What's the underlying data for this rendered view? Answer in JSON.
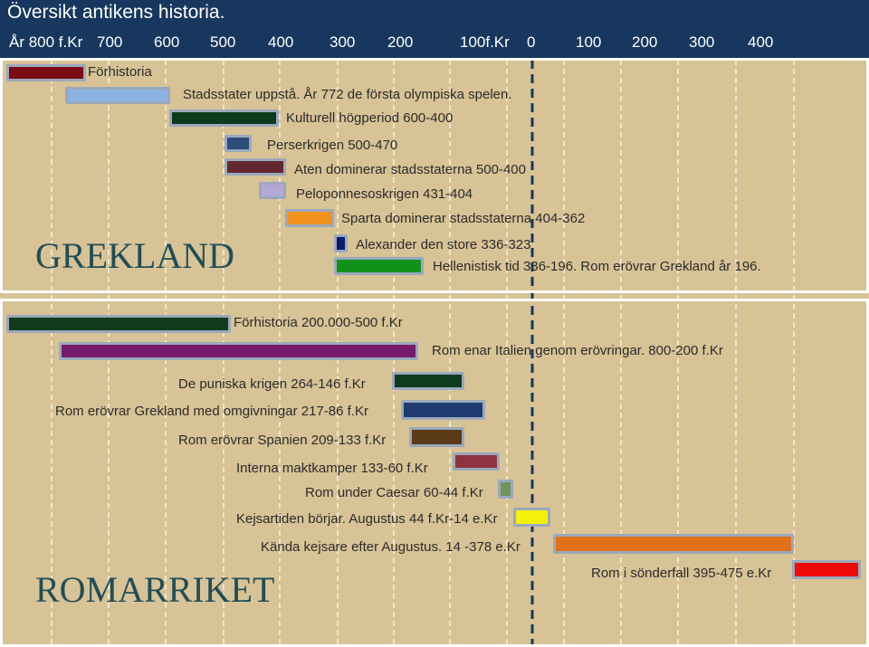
{
  "title": "Översikt antikens historia.",
  "axis_ticks": [
    "År  800 f.Kr",
    "700",
    "600",
    "500",
    "400",
    "300",
    "200",
    "100f.Kr",
    "0",
    "100",
    "200",
    "300",
    "400"
  ],
  "greece": {
    "heading": "GREKLAND",
    "items": [
      {
        "label": "Förhistoria",
        "color": "#7b0c14"
      },
      {
        "label": "Stadsstater uppstå.  År 772 de första olympiska spelen.",
        "color": "#8db3e2"
      },
      {
        "label": "Kulturell högperiod 600-400",
        "color": "#0e3b1e"
      },
      {
        "label": "Perserkrigen  500-470",
        "color": "#2c4d7a"
      },
      {
        "label": "Aten dominerar stadsstaterna 500-400",
        "color": "#63282f"
      },
      {
        "label": "Peloponnesoskrigen  431-404",
        "color": "#b3a8d6"
      },
      {
        "label": "Sparta dominerar stadsstaterna 404-362",
        "color": "#f0921e"
      },
      {
        "label": "Alexander den store 336-323",
        "color": "#0a1a6e"
      },
      {
        "label": "Hellenistisk tid 336-196. Rom erövrar Grekland  år 196.",
        "color": "#12921a"
      }
    ]
  },
  "rome": {
    "heading": "ROMARRIKET",
    "items": [
      {
        "label": "Förhistoria 200.000-500 f.Kr",
        "color": "#123a1c"
      },
      {
        "label": "Rom enar Italien genom erövringar. 800-200 f.Kr",
        "color": "#761b6e"
      },
      {
        "label": "De puniska krigen 264-146 f.Kr",
        "color": "#0e3b1e"
      },
      {
        "label": "Rom erövrar Grekland med omgivningar 217-86 f.Kr",
        "color": "#1f3b70"
      },
      {
        "label": "Rom erövrar Spanien 209-133 f.Kr",
        "color": "#5b3a18"
      },
      {
        "label": "Interna maktkamper 133-60 f.Kr",
        "color": "#8d3440"
      },
      {
        "label": "Rom under Caesar 60-44 f.Kr",
        "color": "#74935a"
      },
      {
        "label": "Kejsartiden börjar. Augustus 44 f.Kr-14 e.Kr",
        "color": "#f4f00a"
      },
      {
        "label": "Kända kejsare efter Augustus. 14 -378 e.Kr",
        "color": "#e0701a"
      },
      {
        "label": "Rom i sönderfall 395-475 e.Kr",
        "color": "#ef0a0a"
      }
    ]
  }
}
